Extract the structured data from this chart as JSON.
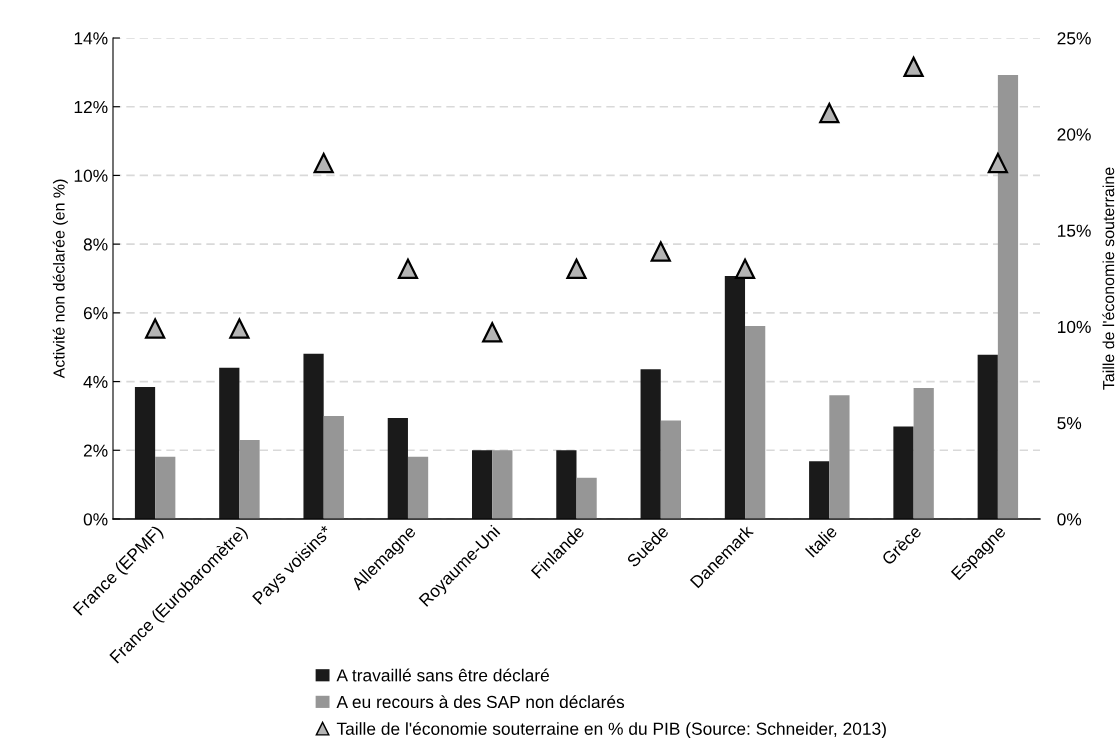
{
  "chart_data": {
    "type": "bar",
    "categories": [
      "France (EPMF)",
      "France (Eurobaromètre)",
      "Pays voisins*",
      "Allemagne",
      "Royaume-Uni",
      "Finlande",
      "Suède",
      "Danemark",
      "Italie",
      "Grèce",
      "Espagne"
    ],
    "series": [
      {
        "name": "A travaillé sans être déclaré",
        "color": "#1a1a1a",
        "values": [
          3.84,
          4.4,
          4.81,
          2.94,
          2.0,
          2.0,
          4.36,
          7.07,
          1.68,
          2.69,
          4.78
        ]
      },
      {
        "name": "A eu recours à des SAP non déclarés",
        "color": "#969696",
        "values": [
          1.81,
          2.3,
          3.0,
          1.81,
          2.0,
          1.2,
          2.87,
          5.62,
          3.6,
          3.81,
          12.92
        ]
      },
      {
        "name": "Taille de l'économie souterraine en % du PIB (Source: Schneider, 2013)",
        "type": "scatter",
        "axis": "y2",
        "marker": "triangle",
        "color": "#b4b4b4",
        "values": [
          9.9,
          9.9,
          18.5,
          13.0,
          9.7,
          13.0,
          13.9,
          13.0,
          21.1,
          23.5,
          18.5
        ]
      }
    ],
    "ylabel": "Activité non déclarée (en %)",
    "y2label": "Taille de l'économie souterraine",
    "ylim": [
      0,
      14
    ],
    "yticks": [
      {
        "value": 0,
        "label": "0%"
      },
      {
        "value": 2,
        "label": "2%"
      },
      {
        "value": 4,
        "label": "4%"
      },
      {
        "value": 6,
        "label": "6%"
      },
      {
        "value": 8,
        "label": "8%"
      },
      {
        "value": 10,
        "label": "10%"
      },
      {
        "value": 12,
        "label": "12%"
      },
      {
        "value": 14,
        "label": "14%"
      }
    ],
    "y2lim": [
      0,
      25
    ],
    "y2ticks": [
      {
        "value": 0,
        "label": "0%"
      },
      {
        "value": 5,
        "label": "5%"
      },
      {
        "value": 10,
        "label": "10%"
      },
      {
        "value": 15,
        "label": "15%"
      },
      {
        "value": 20,
        "label": "20%"
      },
      {
        "value": 25,
        "label": "25%"
      }
    ],
    "grid": "y",
    "legend": "bottom"
  }
}
